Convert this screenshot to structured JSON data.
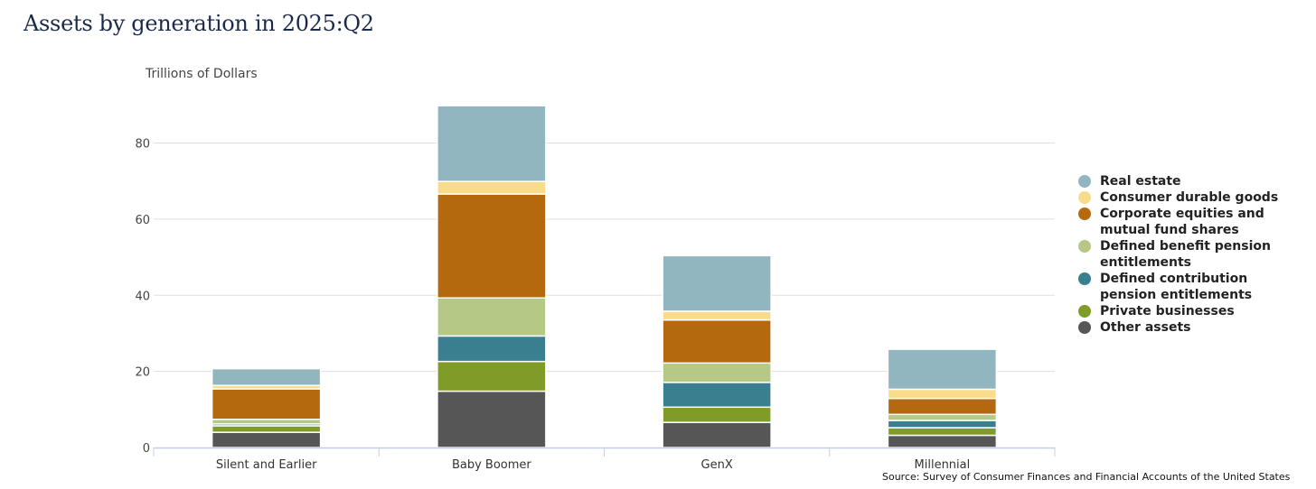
{
  "title": "Assets by generation in 2025:Q2",
  "source": "Source: Survey of Consumer Finances and Financial Accounts of the United States",
  "chart_data": {
    "type": "bar",
    "stacked": true,
    "ylabel": "Trillions of Dollars",
    "ylim": [
      0,
      90
    ],
    "yticks": [
      0,
      20,
      40,
      60,
      80
    ],
    "grid": true,
    "legend_position": "right",
    "categories": [
      "Silent and Earlier",
      "Baby Boomer",
      "GenX",
      "Millennial"
    ],
    "series": [
      {
        "name": "Other assets",
        "color": "#565656",
        "values": [
          4.0,
          14.8,
          6.6,
          3.2
        ]
      },
      {
        "name": "Private businesses",
        "color": "#7e9c27",
        "values": [
          1.7,
          7.8,
          4.0,
          2.0
        ]
      },
      {
        "name": "Defined contribution pension entitlements",
        "color": "#3a7f8f",
        "values": [
          0.5,
          6.7,
          6.5,
          1.9
        ]
      },
      {
        "name": "Defined benefit pension entitlements",
        "color": "#b5c886",
        "values": [
          1.2,
          10.0,
          5.1,
          1.6
        ]
      },
      {
        "name": "Corporate equities and mutual fund shares",
        "color": "#b5690f",
        "values": [
          8.0,
          27.3,
          11.3,
          4.2
        ]
      },
      {
        "name": "Consumer durable goods",
        "color": "#f9dc89",
        "values": [
          0.9,
          3.3,
          2.3,
          2.4
        ]
      },
      {
        "name": "Real estate",
        "color": "#92b6c0",
        "values": [
          4.4,
          19.9,
          14.6,
          10.5
        ]
      }
    ]
  },
  "legend": [
    {
      "label": "Real estate",
      "color": "#92b6c0"
    },
    {
      "label": "Consumer durable goods",
      "color": "#f9dc89"
    },
    {
      "label": "Corporate equities and mutual fund shares",
      "color": "#b5690f"
    },
    {
      "label": "Defined benefit pension entitlements",
      "color": "#b5c886"
    },
    {
      "label": "Defined contribution pension entitlements",
      "color": "#3a7f8f"
    },
    {
      "label": "Private businesses",
      "color": "#7e9c27"
    },
    {
      "label": "Other assets",
      "color": "#565656"
    }
  ]
}
